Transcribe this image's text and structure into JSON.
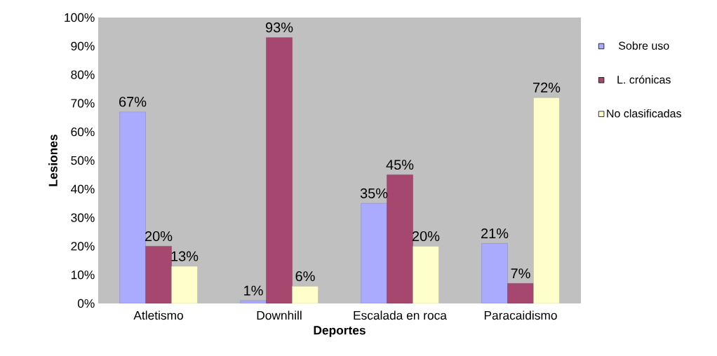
{
  "chart_data": {
    "type": "bar",
    "xlabel": "Deportes",
    "ylabel": "Lesiones",
    "categories": [
      "Atletismo",
      "Downhill",
      "Escalada en roca",
      "Paracaidismo"
    ],
    "series": [
      {
        "name": "Sobre uso",
        "color": "#aaaaff",
        "values": [
          67,
          1,
          35,
          21
        ],
        "value_labels": [
          "67%",
          "1%",
          "35%",
          "21%"
        ]
      },
      {
        "name": "L. crónicas",
        "color": "#a6476f",
        "values": [
          20,
          93,
          45,
          7
        ],
        "value_labels": [
          "20%",
          "93%",
          "45%",
          "7%"
        ]
      },
      {
        "name": "No clasificadas",
        "color": "#ffffcc",
        "values": [
          13,
          6,
          20,
          72
        ],
        "value_labels": [
          "13%",
          "6%",
          "20%",
          "72%"
        ]
      }
    ],
    "ylim": [
      0,
      100
    ],
    "yticks": [
      {
        "value": 0,
        "label": "0%"
      },
      {
        "value": 10,
        "label": "10%"
      },
      {
        "value": 20,
        "label": "20%"
      },
      {
        "value": 30,
        "label": "30%"
      },
      {
        "value": 40,
        "label": "40%"
      },
      {
        "value": 50,
        "label": "50%"
      },
      {
        "value": 60,
        "label": "60%"
      },
      {
        "value": 70,
        "label": "70%"
      },
      {
        "value": 80,
        "label": "80%"
      },
      {
        "value": 90,
        "label": "90%"
      },
      {
        "value": 100,
        "label": "100%"
      }
    ],
    "grid": false,
    "legend": "right"
  }
}
